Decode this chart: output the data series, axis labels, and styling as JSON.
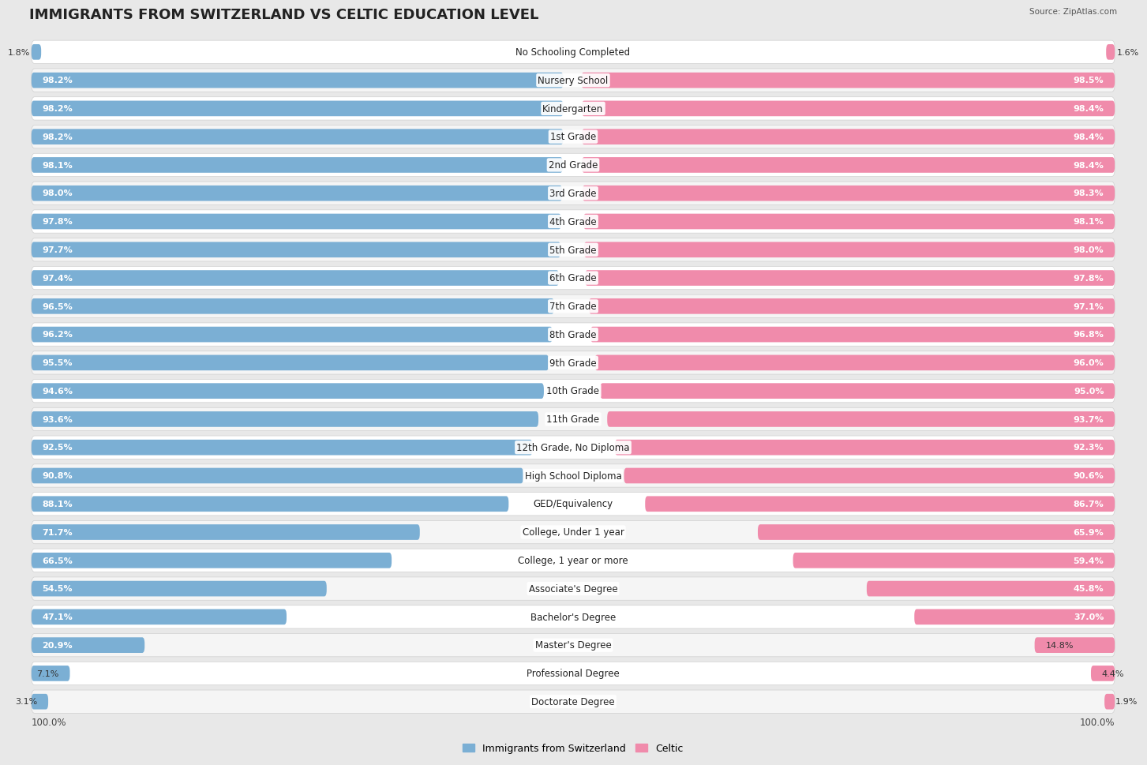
{
  "title": "IMMIGRANTS FROM SWITZERLAND VS CELTIC EDUCATION LEVEL",
  "source": "Source: ZipAtlas.com",
  "categories": [
    "No Schooling Completed",
    "Nursery School",
    "Kindergarten",
    "1st Grade",
    "2nd Grade",
    "3rd Grade",
    "4th Grade",
    "5th Grade",
    "6th Grade",
    "7th Grade",
    "8th Grade",
    "9th Grade",
    "10th Grade",
    "11th Grade",
    "12th Grade, No Diploma",
    "High School Diploma",
    "GED/Equivalency",
    "College, Under 1 year",
    "College, 1 year or more",
    "Associate's Degree",
    "Bachelor's Degree",
    "Master's Degree",
    "Professional Degree",
    "Doctorate Degree"
  ],
  "swiss_values": [
    1.8,
    98.2,
    98.2,
    98.2,
    98.1,
    98.0,
    97.8,
    97.7,
    97.4,
    96.5,
    96.2,
    95.5,
    94.6,
    93.6,
    92.5,
    90.8,
    88.1,
    71.7,
    66.5,
    54.5,
    47.1,
    20.9,
    7.1,
    3.1
  ],
  "celtic_values": [
    1.6,
    98.5,
    98.4,
    98.4,
    98.4,
    98.3,
    98.1,
    98.0,
    97.8,
    97.1,
    96.8,
    96.0,
    95.0,
    93.7,
    92.3,
    90.6,
    86.7,
    65.9,
    59.4,
    45.8,
    37.0,
    14.8,
    4.4,
    1.9
  ],
  "swiss_color": "#7bafd4",
  "celtic_color": "#f08bab",
  "bg_outer": "#e8e8e8",
  "bg_row_even": "#f5f5f5",
  "bg_row_odd": "#ffffff",
  "row_border": "#d0d0d0",
  "legend_swiss": "Immigrants from Switzerland",
  "legend_celtic": "Celtic",
  "title_fontsize": 13,
  "cat_fontsize": 8.5,
  "val_fontsize": 8.0,
  "axis_label_fontsize": 8.5
}
